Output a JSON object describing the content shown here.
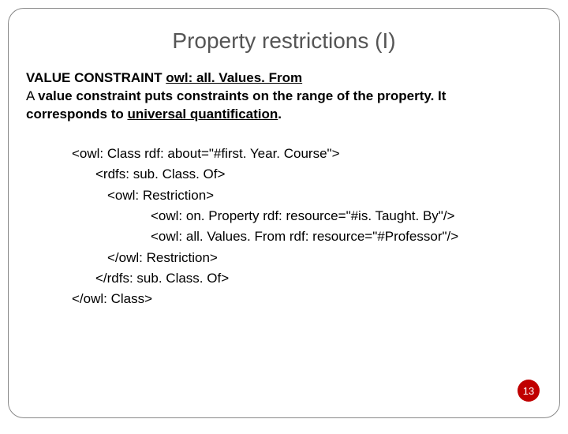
{
  "slide": {
    "title": "Property restrictions (I)",
    "heading_prefix": "VALUE CONSTRAINT ",
    "heading_property": "owl: all. Values. From",
    "body_line1_a": "A ",
    "body_line1_b": "value constraint",
    "body_line1_c": " puts constraints on the range of the property. It",
    "body_line2_a": "corresponds to ",
    "body_line2_b": "universal quantification",
    "body_line2_c": ".",
    "code": {
      "l1": "<owl: Class rdf: about=\"#first. Year. Course\">",
      "l2": "<rdfs: sub. Class. Of>",
      "l3": "<owl: Restriction>",
      "l4": "<owl: on. Property rdf: resource=\"#is. Taught. By\"/>",
      "l5": "<owl: all. Values. From rdf: resource=\"#Professor\"/>",
      "l6": "</owl: Restriction>",
      "l7": "</rdfs: sub. Class. Of>",
      "l8": "</owl: Class>"
    },
    "page_number": "13",
    "colors": {
      "title_color": "#555555",
      "text_color": "#000000",
      "page_badge_bg": "#c00000",
      "page_badge_text": "#ffffff",
      "border_color": "#888888"
    }
  }
}
